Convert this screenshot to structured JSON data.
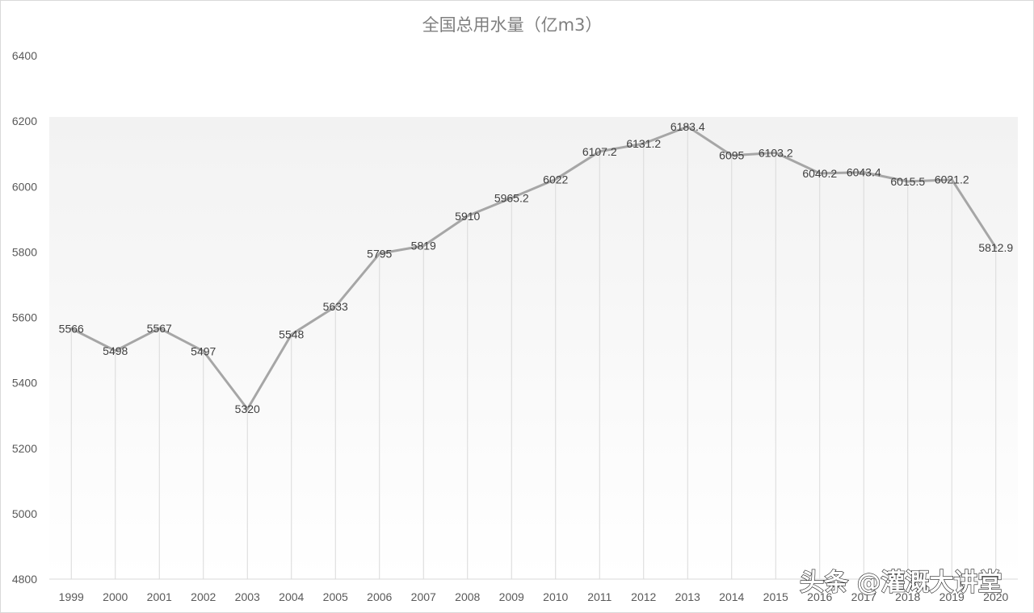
{
  "chart_data": {
    "type": "line",
    "title": "全国总用水量（亿m3）",
    "categories": [
      "1999",
      "2000",
      "2001",
      "2002",
      "2003",
      "2004",
      "2005",
      "2006",
      "2007",
      "2008",
      "2009",
      "2010",
      "2011",
      "2012",
      "2013",
      "2014",
      "2015",
      "2016",
      "2017",
      "2018",
      "2019",
      "2020"
    ],
    "values": [
      5566,
      5498,
      5567,
      5497,
      5320,
      5548,
      5633,
      5795,
      5819,
      5910,
      5965.2,
      6022,
      6107.2,
      6131.2,
      6183.4,
      6095,
      6103.2,
      6040.2,
      6043.4,
      6015.5,
      6021.2,
      5812.9
    ],
    "data_labels": [
      "5566",
      "5498",
      "5567",
      "5497",
      "5320",
      "5548",
      "5633",
      "5795",
      "5819",
      "5910",
      "5965.2",
      "6022",
      "6107.2",
      "6131.2",
      "6183.4",
      "6095",
      "6103.2",
      "6040.2",
      "6043.4",
      "6015.5",
      "6021.2",
      "5812.9"
    ],
    "y_ticks": [
      "4800",
      "5000",
      "5200",
      "5400",
      "5600",
      "5800",
      "6000",
      "6200",
      "6400"
    ],
    "ylim": [
      4800,
      6400
    ],
    "grid": "vertical drop lines",
    "legend": "none",
    "colors": {
      "line": "#a6a6a6",
      "drop_line": "#d9d9d9",
      "axis": "#d9d9d9",
      "title": "#7f7f7f",
      "tick": "#595959"
    }
  },
  "watermark": {
    "text": "头条 @灌溉大讲堂"
  }
}
